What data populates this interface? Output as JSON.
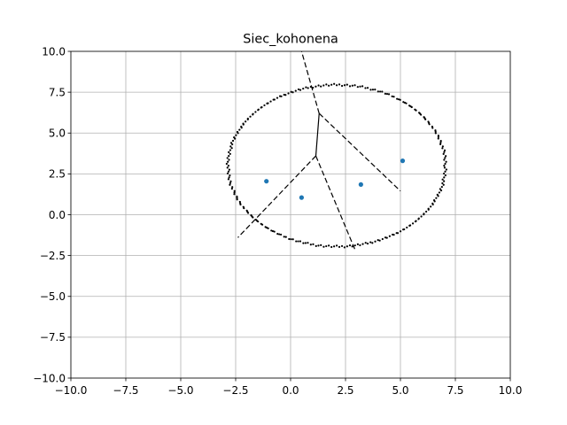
{
  "chart_data": {
    "type": "scatter",
    "title": "Siec_kohonena",
    "xlabel": "",
    "ylabel": "",
    "xlim": [
      -10,
      10
    ],
    "ylim": [
      -10,
      10
    ],
    "grid": true,
    "x_ticks": [
      -10,
      -7.5,
      -5,
      -2.5,
      0,
      2.5,
      5,
      7.5,
      10
    ],
    "y_ticks": [
      -10,
      -7.5,
      -5,
      -2.5,
      0,
      2.5,
      5,
      7.5,
      10
    ],
    "x_tick_labels": [
      "−10.0",
      "−7.5",
      "−5.0",
      "−2.5",
      "0.0",
      "2.5",
      "5.0",
      "7.5",
      "10.0"
    ],
    "y_tick_labels": [
      "−10.0",
      "−7.5",
      "−5.0",
      "−2.5",
      "0.0",
      "2.5",
      "5.0",
      "7.5",
      "10.0"
    ],
    "colors": {
      "points": "#1f77b4",
      "ring": "#000000",
      "lines": "#000000",
      "grid": "#b0b0b0"
    },
    "ring": {
      "center": [
        2.1,
        3.0
      ],
      "radius_x": 4.95,
      "radius_y": 4.95,
      "samples": 260
    },
    "points": [
      {
        "x": -1.1,
        "y": 2.05
      },
      {
        "x": 0.5,
        "y": 1.05
      },
      {
        "x": 3.2,
        "y": 1.85
      },
      {
        "x": 5.1,
        "y": 3.3
      }
    ],
    "voronoi_solid": [
      {
        "x": [
          1.3,
          1.15
        ],
        "y": [
          6.2,
          3.6
        ]
      }
    ],
    "voronoi_dashed": [
      {
        "x": [
          1.3,
          0.5
        ],
        "y": [
          6.2,
          10.0
        ]
      },
      {
        "x": [
          1.3,
          5.0
        ],
        "y": [
          6.2,
          1.45
        ]
      },
      {
        "x": [
          1.15,
          -2.4
        ],
        "y": [
          3.6,
          -1.4
        ]
      },
      {
        "x": [
          1.15,
          2.95
        ],
        "y": [
          3.6,
          -2.2
        ]
      }
    ]
  }
}
